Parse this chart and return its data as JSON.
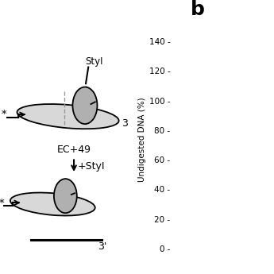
{
  "background_color": "#ffffff",
  "panel_b_label": "b",
  "ytick_values": [
    0,
    20,
    40,
    60,
    80,
    100,
    120,
    140
  ],
  "ylabel": "Undigested DNA (%)",
  "ylabel_fontsize": 7.5,
  "ytick_fontsize": 7.5,
  "gray_poly": "#b0b0b0",
  "light_gray_dna": "#d8d8d8",
  "black": "#000000",
  "dashed_gray": "#999999"
}
